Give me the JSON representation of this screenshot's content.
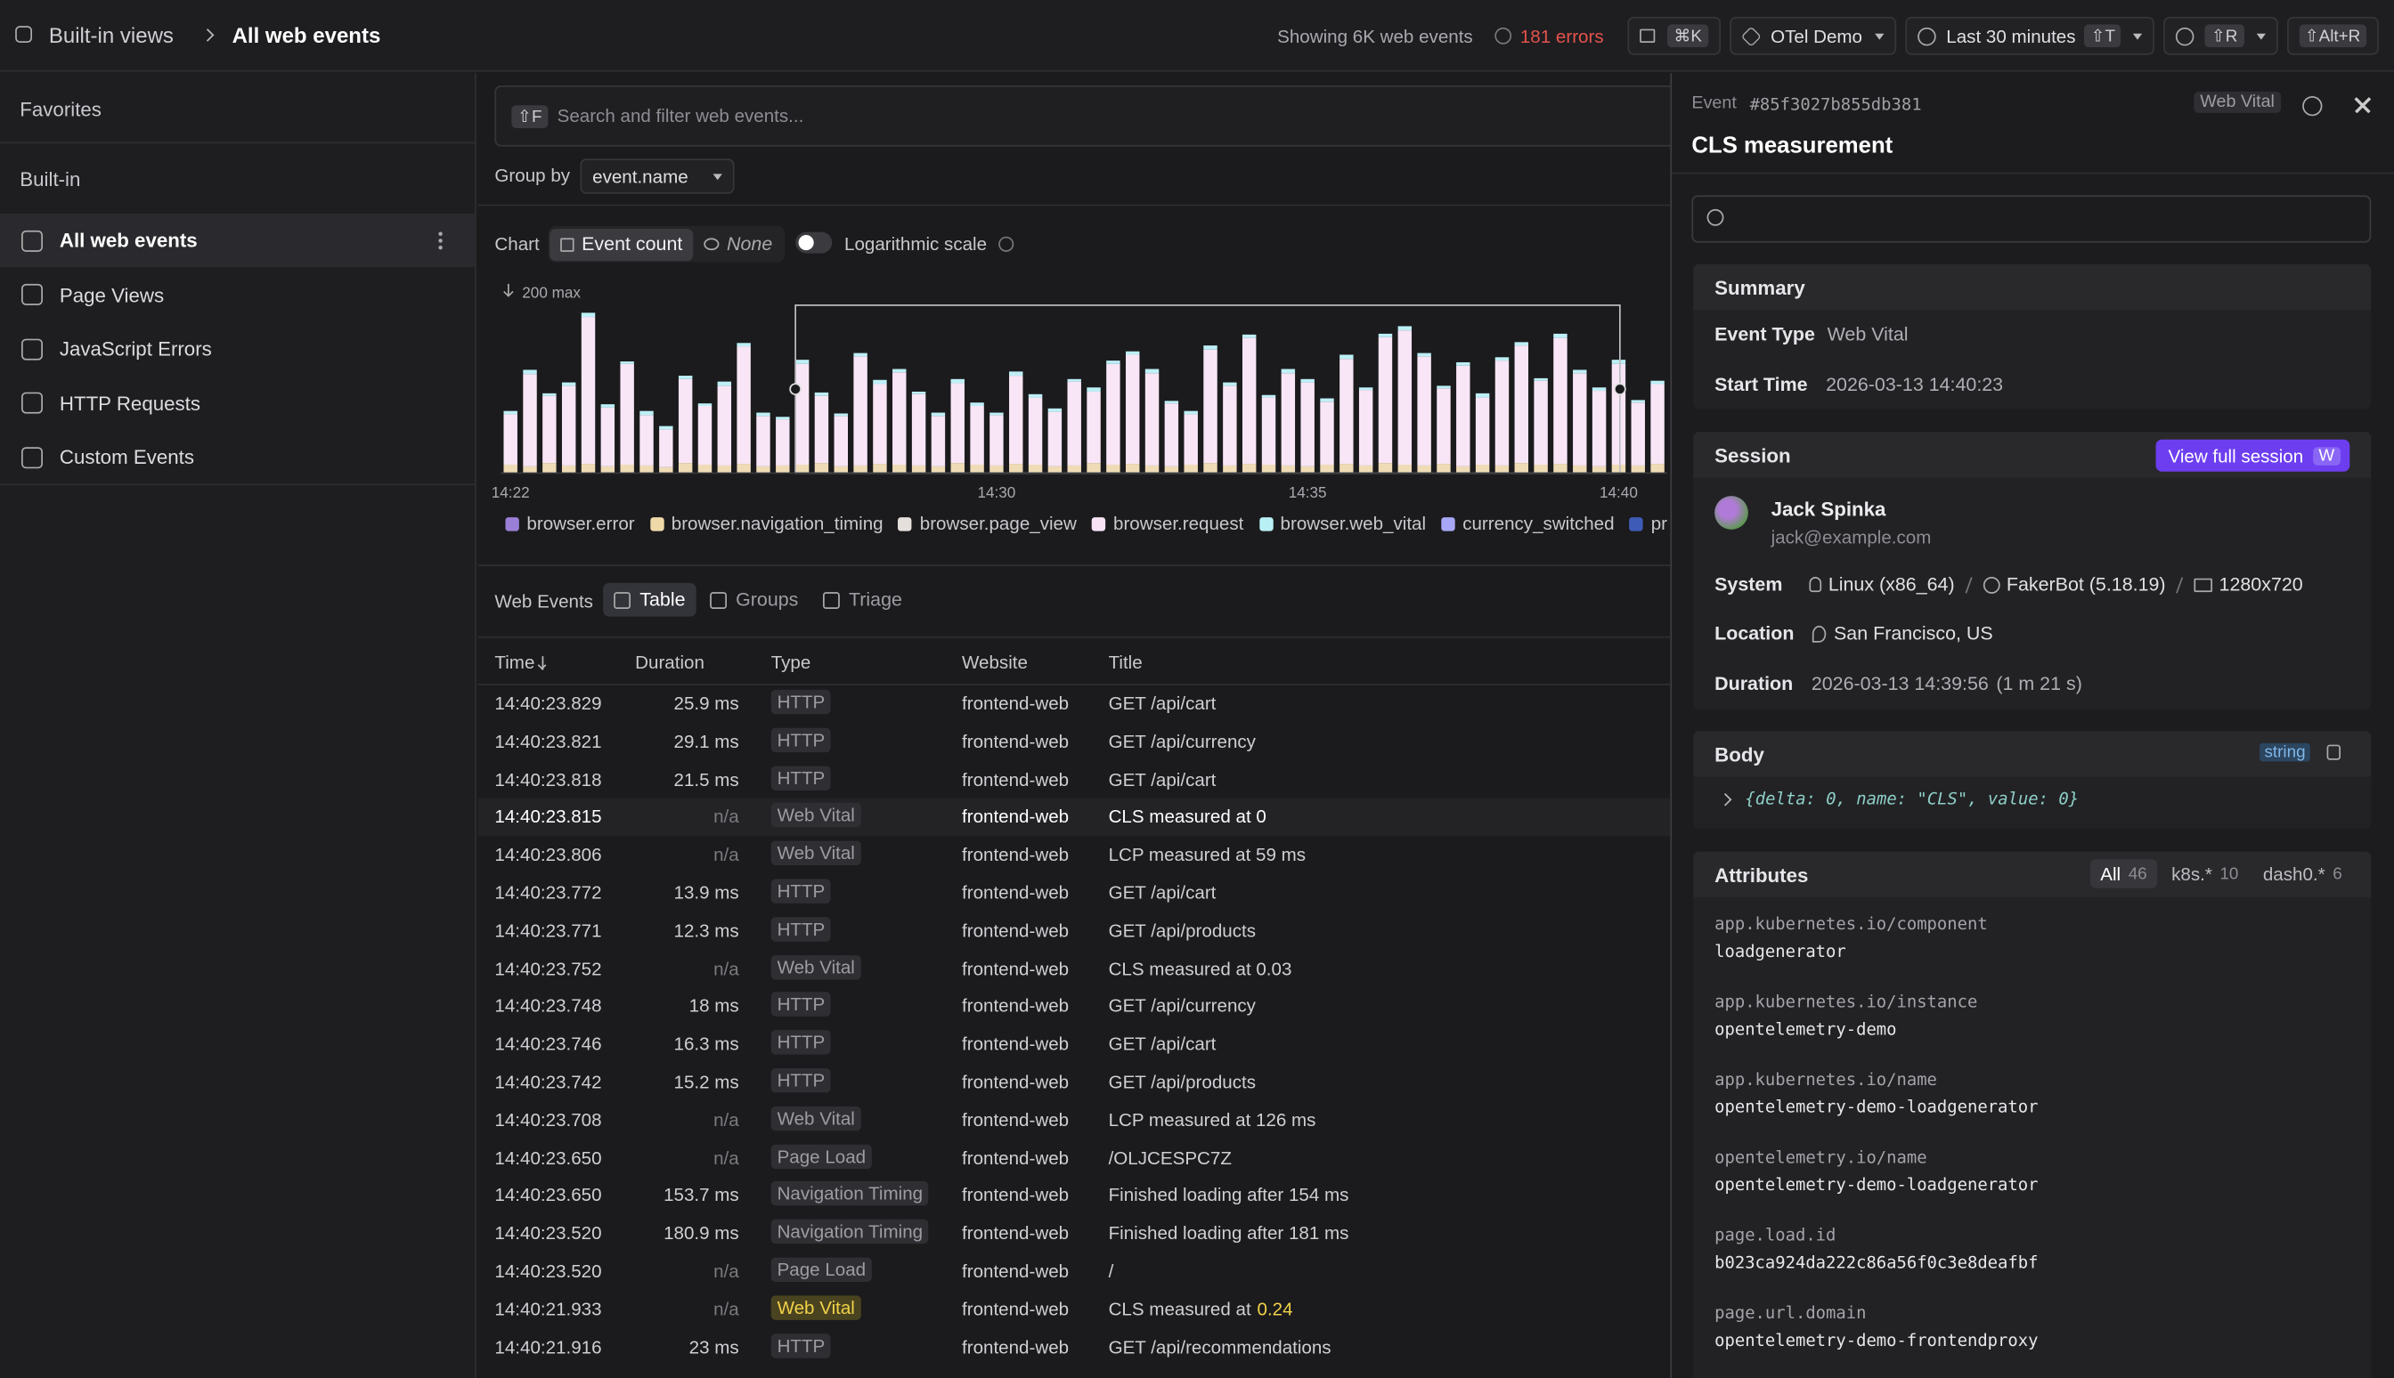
{
  "header": {
    "breadcrumb": [
      "Built-in views",
      "All web events"
    ],
    "status": "Showing 6K web events",
    "errors": "181 errors",
    "command_key": "⌘K",
    "workspace": "OTel Demo",
    "time_range": "Last 30 minutes",
    "time_key": "⇧T",
    "refresh_key": "⇧R",
    "auto_refresh_key": "⇧Alt+R"
  },
  "sidebar": {
    "favorites": "Favorites",
    "builtin": "Built-in",
    "items": [
      "All web events",
      "Page Views",
      "JavaScript Errors",
      "HTTP Requests",
      "Custom Events"
    ],
    "active": 0
  },
  "search": {
    "key": "⇧F",
    "placeholder": "Search and filter web events..."
  },
  "group_by": {
    "label": "Group by",
    "value": "event.name"
  },
  "chart_controls": {
    "label": "Chart",
    "metric": "Event count",
    "split": "None",
    "log_label": "Logarithmic scale",
    "log_scale": false
  },
  "chart_data": {
    "type": "bar",
    "stacked": true,
    "ymax_label": "200 max",
    "ylim": [
      0,
      200
    ],
    "categories": [
      "14:22",
      null,
      null,
      null,
      null,
      null,
      null,
      null,
      null,
      null,
      null,
      null,
      null,
      null,
      null,
      null,
      null,
      null,
      null,
      null,
      null,
      null,
      null,
      null,
      null,
      "14:30",
      null,
      null,
      null,
      null,
      null,
      null,
      null,
      null,
      null,
      null,
      null,
      null,
      null,
      null,
      null,
      "14:35",
      null,
      null,
      null,
      null,
      null,
      null,
      null,
      null,
      null,
      null,
      null,
      null,
      null,
      null,
      null,
      "14:40",
      null,
      null
    ],
    "series": [
      {
        "name": "browser.navigation_timing",
        "color": "#efdcb6",
        "values": [
          10,
          8,
          12,
          9,
          11,
          8,
          10,
          9,
          7,
          12,
          10,
          9,
          11,
          8,
          9,
          10,
          12,
          8,
          9,
          11,
          10,
          9,
          8,
          12,
          10,
          9,
          11,
          10,
          8,
          9,
          12,
          10,
          11,
          9,
          8,
          10,
          12,
          9,
          11,
          10,
          9,
          8,
          10,
          11,
          9,
          12,
          10,
          9,
          11,
          8,
          10,
          9,
          12,
          10,
          11,
          9,
          8,
          10,
          9,
          11
        ]
      },
      {
        "name": "browser.request",
        "color": "#f8e6f6",
        "values": [
          60,
          110,
          80,
          95,
          175,
          70,
          120,
          60,
          45,
          100,
          70,
          95,
          140,
          60,
          55,
          120,
          80,
          60,
          130,
          95,
          110,
          85,
          60,
          95,
          70,
          60,
          105,
          80,
          65,
          100,
          85,
          120,
          130,
          110,
          75,
          60,
          135,
          95,
          150,
          80,
          110,
          100,
          75,
          125,
          90,
          150,
          160,
          130,
          90,
          120,
          80,
          125,
          140,
          100,
          150,
          110,
          90,
          120,
          75,
          95
        ]
      },
      {
        "name": "browser.web_vital",
        "color": "#bdeff6",
        "values": [
          4,
          5,
          3,
          4,
          5,
          4,
          3,
          5,
          4,
          4,
          3,
          5,
          4,
          4,
          3,
          5,
          4,
          3,
          4,
          5,
          4,
          3,
          4,
          5,
          4,
          3,
          5,
          4,
          4,
          3,
          5,
          4,
          4,
          5,
          3,
          4,
          5,
          4,
          4,
          3,
          5,
          4,
          4,
          5,
          3,
          4,
          5,
          4,
          3,
          4,
          5,
          4,
          4,
          3,
          5,
          4,
          4,
          5,
          3,
          4
        ]
      }
    ],
    "legend": [
      {
        "name": "browser.error",
        "color": "#9a7fd6"
      },
      {
        "name": "browser.navigation_timing",
        "color": "#efd9a8"
      },
      {
        "name": "browser.page_view",
        "color": "#e6e0dc"
      },
      {
        "name": "browser.request",
        "color": "#f8e3f5"
      },
      {
        "name": "browser.web_vital",
        "color": "#b8f0f6"
      },
      {
        "name": "currency_switched",
        "color": "#a7a6f7"
      },
      {
        "name": "pr",
        "color": "#3f5bb8"
      }
    ]
  },
  "events": {
    "label": "Web Events",
    "tabs": [
      "Table",
      "Groups",
      "Triage"
    ],
    "active_tab": 0,
    "columns": [
      "Time",
      "Duration",
      "Type",
      "Website",
      "Title"
    ],
    "selected_row": 3,
    "warning_row": 16,
    "rows": [
      [
        "14:40:23.829",
        "25.9 ms",
        "HTTP",
        "frontend-web",
        "GET /api/cart"
      ],
      [
        "14:40:23.821",
        "29.1 ms",
        "HTTP",
        "frontend-web",
        "GET /api/currency"
      ],
      [
        "14:40:23.818",
        "21.5 ms",
        "HTTP",
        "frontend-web",
        "GET /api/cart"
      ],
      [
        "14:40:23.815",
        "n/a",
        "Web Vital",
        "frontend-web",
        "CLS measured at 0"
      ],
      [
        "14:40:23.806",
        "n/a",
        "Web Vital",
        "frontend-web",
        "LCP measured at 59 ms"
      ],
      [
        "14:40:23.772",
        "13.9 ms",
        "HTTP",
        "frontend-web",
        "GET /api/cart"
      ],
      [
        "14:40:23.771",
        "12.3 ms",
        "HTTP",
        "frontend-web",
        "GET /api/products"
      ],
      [
        "14:40:23.752",
        "n/a",
        "Web Vital",
        "frontend-web",
        "CLS measured at 0.03"
      ],
      [
        "14:40:23.748",
        "18 ms",
        "HTTP",
        "frontend-web",
        "GET /api/currency"
      ],
      [
        "14:40:23.746",
        "16.3 ms",
        "HTTP",
        "frontend-web",
        "GET /api/cart"
      ],
      [
        "14:40:23.742",
        "15.2 ms",
        "HTTP",
        "frontend-web",
        "GET /api/products"
      ],
      [
        "14:40:23.708",
        "n/a",
        "Web Vital",
        "frontend-web",
        "LCP measured at 126 ms"
      ],
      [
        "14:40:23.650",
        "n/a",
        "Page Load",
        "frontend-web",
        "/OLJCESPC7Z"
      ],
      [
        "14:40:23.650",
        "153.7 ms",
        "Navigation Timing",
        "frontend-web",
        "Finished loading after 154 ms"
      ],
      [
        "14:40:23.520",
        "180.9 ms",
        "Navigation Timing",
        "frontend-web",
        "Finished loading after 181 ms"
      ],
      [
        "14:40:23.520",
        "n/a",
        "Page Load",
        "frontend-web",
        "/"
      ],
      [
        "14:40:21.933",
        "n/a",
        "Web Vital",
        "frontend-web",
        {
          "text": "CLS measured at",
          "value": "0.24"
        }
      ],
      [
        "14:40:21.916",
        "23 ms",
        "HTTP",
        "frontend-web",
        "GET /api/recommendations"
      ]
    ]
  },
  "detail": {
    "event_label": "Event",
    "event_id": "#85f3027b855db381",
    "badge": "Web Vital",
    "title": "CLS measurement",
    "summary": {
      "heading": "Summary",
      "rows": [
        [
          "Event Type",
          "Web Vital"
        ],
        [
          "Start Time",
          "2026-03-13 14:40:23"
        ]
      ]
    },
    "session": {
      "heading": "Session",
      "button": "View full session",
      "button_key": "W",
      "user": "Jack Spinka",
      "email": "jack@example.com",
      "system_label": "System",
      "system": [
        "Linux (x86_64)",
        "FakerBot (5.18.19)",
        "1280x720"
      ],
      "location_label": "Location",
      "location": "San Francisco, US",
      "duration_label": "Duration",
      "duration": "2026-03-13 14:39:56",
      "duration_extra": "(1 m 21 s)"
    },
    "body": {
      "heading": "Body",
      "type": "string",
      "content": "{delta: 0, name: \"CLS\", value: 0}"
    },
    "attributes": {
      "heading": "Attributes",
      "tabs": [
        [
          "All",
          "46"
        ],
        [
          "k8s.*",
          "10"
        ],
        [
          "dash0.*",
          "6"
        ]
      ],
      "items": [
        [
          "app.kubernetes.io/component",
          "loadgenerator"
        ],
        [
          "app.kubernetes.io/instance",
          "opentelemetry-demo"
        ],
        [
          "app.kubernetes.io/name",
          "opentelemetry-demo-loadgenerator"
        ],
        [
          "opentelemetry.io/name",
          "opentelemetry-demo-loadgenerator"
        ],
        [
          "page.load.id",
          "b023ca924da222c86a56f0c3e8deafbf"
        ],
        [
          "page.url.domain",
          "opentelemetry-demo-frontendproxy"
        ]
      ]
    }
  }
}
